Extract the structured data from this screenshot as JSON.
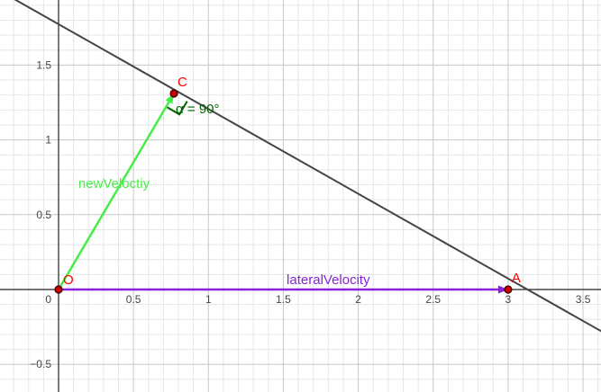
{
  "axes": {
    "x_ticks": [
      {
        "value": 0.5,
        "label": "0.5"
      },
      {
        "value": 1,
        "label": "1"
      },
      {
        "value": 1.5,
        "label": "1.5"
      },
      {
        "value": 2,
        "label": "2"
      },
      {
        "value": 2.5,
        "label": "2.5"
      },
      {
        "value": 3,
        "label": "3"
      },
      {
        "value": 3.5,
        "label": "3.5"
      }
    ],
    "y_ticks": [
      {
        "value": 1.5,
        "label": "1.5"
      },
      {
        "value": 1,
        "label": "1"
      },
      {
        "value": 0.5,
        "label": "0.5"
      },
      {
        "value": -0.5,
        "label": "−0.5"
      }
    ],
    "origin_label": "0"
  },
  "points": {
    "O": {
      "label": "O",
      "x": 0,
      "y": 0
    },
    "A": {
      "label": "A",
      "x": 3,
      "y": 0
    },
    "C": {
      "label": "C",
      "x": 0.77,
      "y": 1.31
    }
  },
  "line": {
    "x1": -0.4,
    "y1": 2.0,
    "x2": 3.8,
    "y2": -0.38
  },
  "vectors": {
    "new_velocity": {
      "label": "newVeloctiy",
      "color": "#44ee44"
    },
    "lateral_velocity": {
      "label": "lateralVelocity",
      "color": "#8822dd"
    }
  },
  "angle": {
    "label": "α = 90°",
    "color": "#006400"
  },
  "colors": {
    "point_fill": "#cc0000",
    "point_label": "#ff0000",
    "line": "#444444",
    "grid_minor": "#e6e6e6",
    "grid_major": "#c8c8c8",
    "axis": "#222222"
  }
}
